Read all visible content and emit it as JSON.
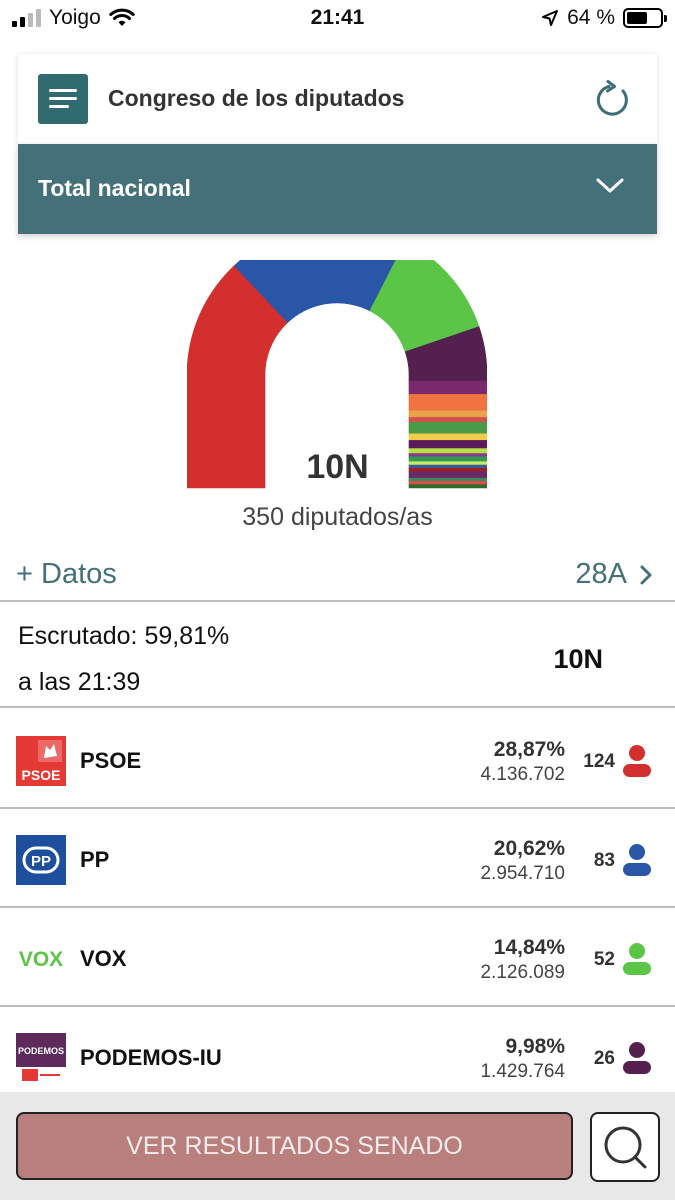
{
  "status_bar": {
    "carrier": "Yoigo",
    "time": "21:41",
    "battery": "64 %",
    "battery_level": 0.64
  },
  "header": {
    "title": "Congreso de los diputados"
  },
  "region": {
    "selected": "Total nacional"
  },
  "chart": {
    "election": "10N",
    "total_seats_label": "350 diputados/as",
    "total_seats": 350,
    "hemicycle_segments": [
      {
        "party": "PSOE",
        "seats": 124,
        "color": "#d32f2f"
      },
      {
        "party": "PP",
        "seats": 83,
        "color": "#2a56a8"
      },
      {
        "party": "VOX",
        "seats": 52,
        "color": "#5bc548"
      },
      {
        "party": "PODEMOS-IU",
        "seats": 26,
        "color": "#53204f"
      },
      {
        "party": "",
        "seats": 8,
        "color": "#7a2a6a"
      },
      {
        "party": "",
        "seats": 10,
        "color": "#f07340"
      },
      {
        "party": "",
        "seats": 4,
        "color": "#e8a24a"
      },
      {
        "party": "",
        "seats": 3,
        "color": "#d4504a"
      },
      {
        "party": "",
        "seats": 7,
        "color": "#4a9a46"
      },
      {
        "party": "",
        "seats": 4,
        "color": "#f2cc4a"
      },
      {
        "party": "",
        "seats": 5,
        "color": "#5a1c58"
      },
      {
        "party": "",
        "seats": 3,
        "color": "#b8e04a"
      },
      {
        "party": "",
        "seats": 2,
        "color": "#8a3a8a"
      },
      {
        "party": "",
        "seats": 3,
        "color": "#2f9a52"
      },
      {
        "party": "",
        "seats": 2,
        "color": "#c8e86a"
      },
      {
        "party": "",
        "seats": 2,
        "color": "#3a5a9a"
      },
      {
        "party": "",
        "seats": 2,
        "color": "#a02020"
      },
      {
        "party": "",
        "seats": 4,
        "color": "#6a2a6a"
      },
      {
        "party": "",
        "seats": 2,
        "color": "#3a8a5a"
      },
      {
        "party": "",
        "seats": 2,
        "color": "#e04a4a"
      },
      {
        "party": "",
        "seats": 2,
        "color": "#2a6a2a"
      }
    ]
  },
  "links": {
    "more_data": "Datos",
    "previous_election": "28A"
  },
  "scrutiny": {
    "percent": "Escrutado: 59,81%",
    "time": "a las 21:39",
    "election": "10N"
  },
  "parties": [
    {
      "name": "PSOE",
      "percent": "28,87%",
      "votes": "4.136.702",
      "seats": "124",
      "color": "#d32f2f",
      "logo_color": "#e53935",
      "logo_text": "PSOE"
    },
    {
      "name": "PP",
      "percent": "20,62%",
      "votes": "2.954.710",
      "seats": "83",
      "color": "#2a56a8",
      "logo_color": "#1d4f9c",
      "logo_text": "PP"
    },
    {
      "name": "VOX",
      "percent": "14,84%",
      "votes": "2.126.089",
      "seats": "52",
      "color": "#5bc548",
      "logo_color": "#5bc548",
      "logo_text": "VOX"
    },
    {
      "name": "PODEMOS-IU",
      "percent": "9,98%",
      "votes": "1.429.764",
      "seats": "26",
      "color": "#53204f",
      "logo_color": "#5e2a5c",
      "logo_text": "PODEMOS"
    }
  ],
  "footer": {
    "senate_button": "VER RESULTADOS SENADO"
  }
}
